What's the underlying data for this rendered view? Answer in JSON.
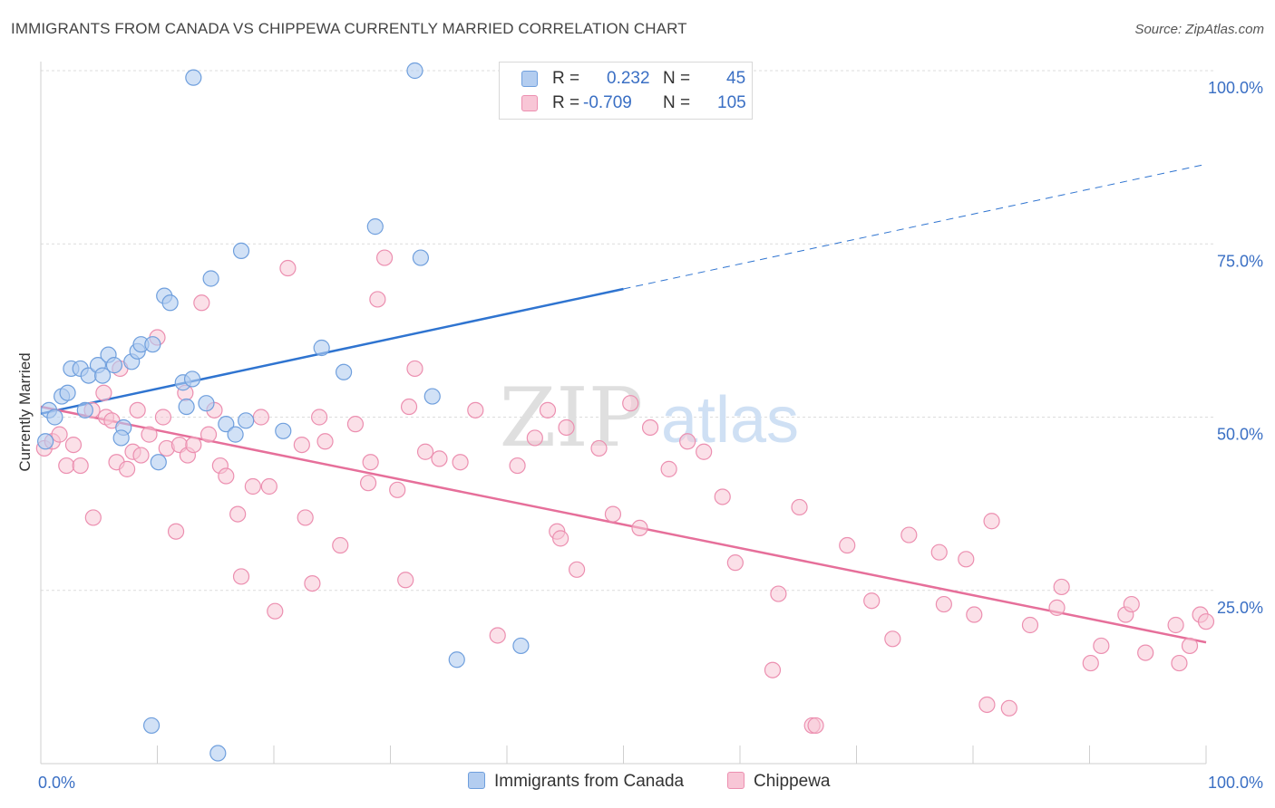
{
  "title": "IMMIGRANTS FROM CANADA VS CHIPPEWA CURRENTLY MARRIED CORRELATION CHART",
  "source": "Source: ZipAtlas.com",
  "watermark": {
    "zip": "ZIP",
    "atlas": "atlas"
  },
  "legend": {
    "r_label": "R =",
    "n_label": "N =",
    "rows": [
      {
        "r": "0.232",
        "n": "45",
        "color": "#a9c8f0"
      },
      {
        "r": "-0.709",
        "n": "105",
        "color": "#f5b8cc"
      }
    ]
  },
  "colors": {
    "blue_fill": "#b3cdf0",
    "blue_stroke": "#6f9fdd",
    "blue_line": "#2f74d0",
    "pink_fill": "#f8c6d6",
    "pink_stroke": "#ec8fb0",
    "pink_line": "#e66f9a",
    "grid": "#dcdcdc",
    "tick_text": "#3a6fc4"
  },
  "chart_data": {
    "type": "scatter",
    "xlabel": "",
    "ylabel": "Currently Married",
    "xlim": [
      0,
      100
    ],
    "ylim": [
      0,
      100
    ],
    "x_tick_labels": [
      {
        "x": 0,
        "label": "0.0%"
      },
      {
        "x": 100,
        "label": "100.0%"
      }
    ],
    "y_tick_labels": [
      {
        "y": 25,
        "label": "25.0%"
      },
      {
        "y": 50,
        "label": "50.0%"
      },
      {
        "y": 75,
        "label": "75.0%"
      },
      {
        "y": 100,
        "label": "100.0%"
      }
    ],
    "grid": true,
    "series": [
      {
        "name": "Immigrants from Canada",
        "color": "#a9c8f0",
        "r": 0.232,
        "n": 45,
        "trend": {
          "x0": 0,
          "y0": 50.5,
          "x1": 50,
          "y1": 68.5,
          "dashed_to_x": 100,
          "dashed_to_y": 86.5
        },
        "points": [
          [
            0.4,
            46.5
          ],
          [
            0.7,
            51
          ],
          [
            1.2,
            50
          ],
          [
            1.8,
            53
          ],
          [
            2.3,
            53.5
          ],
          [
            2.6,
            57
          ],
          [
            3.4,
            57
          ],
          [
            4.1,
            56
          ],
          [
            3.8,
            51
          ],
          [
            4.9,
            57.5
          ],
          [
            5.3,
            56
          ],
          [
            5.8,
            59
          ],
          [
            6.3,
            57.5
          ],
          [
            7.1,
            48.5
          ],
          [
            6.9,
            47
          ],
          [
            7.8,
            58
          ],
          [
            8.3,
            59.5
          ],
          [
            8.6,
            60.5
          ],
          [
            9.6,
            60.5
          ],
          [
            10.1,
            43.5
          ],
          [
            10.6,
            67.5
          ],
          [
            11.1,
            66.5
          ],
          [
            12.2,
            55
          ],
          [
            12.5,
            51.5
          ],
          [
            13.0,
            55.5
          ],
          [
            14.2,
            52
          ],
          [
            14.6,
            70
          ],
          [
            15.9,
            49
          ],
          [
            16.7,
            47.5
          ],
          [
            17.2,
            74
          ],
          [
            17.6,
            49.5
          ],
          [
            20.8,
            48
          ],
          [
            24.1,
            60
          ],
          [
            26.0,
            56.5
          ],
          [
            28.7,
            77.5
          ],
          [
            32.6,
            73
          ],
          [
            33.6,
            53
          ],
          [
            13.1,
            99
          ],
          [
            32.1,
            100
          ],
          [
            9.5,
            5.5
          ],
          [
            15.2,
            1.5
          ],
          [
            35.7,
            15
          ],
          [
            41.2,
            17
          ]
        ]
      },
      {
        "name": "Chippewa",
        "color": "#f5b8cc",
        "r": -0.709,
        "n": 105,
        "trend": {
          "x0": 0,
          "y0": 51.5,
          "x1": 100,
          "y1": 17.5
        },
        "points": [
          [
            0.3,
            45.5
          ],
          [
            1.0,
            46.5
          ],
          [
            1.6,
            47.5
          ],
          [
            2.2,
            43
          ],
          [
            2.8,
            46
          ],
          [
            3.4,
            43
          ],
          [
            4.4,
            51
          ],
          [
            4.5,
            35.5
          ],
          [
            5.4,
            53.5
          ],
          [
            5.6,
            50
          ],
          [
            6.1,
            49.5
          ],
          [
            6.5,
            43.5
          ],
          [
            6.8,
            57
          ],
          [
            7.4,
            42.5
          ],
          [
            7.9,
            45
          ],
          [
            8.3,
            51
          ],
          [
            8.6,
            44.5
          ],
          [
            9.3,
            47.5
          ],
          [
            10.0,
            61.5
          ],
          [
            10.5,
            50
          ],
          [
            10.8,
            45.5
          ],
          [
            11.6,
            33.5
          ],
          [
            11.9,
            46
          ],
          [
            12.4,
            53.5
          ],
          [
            12.6,
            44.5
          ],
          [
            13.1,
            46
          ],
          [
            13.8,
            66.5
          ],
          [
            14.4,
            47.5
          ],
          [
            14.9,
            51
          ],
          [
            15.4,
            43
          ],
          [
            15.9,
            41.5
          ],
          [
            16.9,
            36
          ],
          [
            17.2,
            27
          ],
          [
            18.2,
            40
          ],
          [
            18.9,
            50
          ],
          [
            19.6,
            40
          ],
          [
            20.1,
            22
          ],
          [
            21.2,
            71.5
          ],
          [
            22.4,
            46
          ],
          [
            22.7,
            35.5
          ],
          [
            23.3,
            26
          ],
          [
            23.9,
            50
          ],
          [
            24.4,
            46.5
          ],
          [
            25.7,
            31.5
          ],
          [
            27.0,
            49
          ],
          [
            28.1,
            40.5
          ],
          [
            28.3,
            43.5
          ],
          [
            28.9,
            67
          ],
          [
            29.5,
            73
          ],
          [
            30.6,
            39.5
          ],
          [
            31.3,
            26.5
          ],
          [
            31.6,
            51.5
          ],
          [
            32.1,
            57
          ],
          [
            33.0,
            45
          ],
          [
            34.2,
            44
          ],
          [
            36.0,
            43.5
          ],
          [
            37.3,
            51
          ],
          [
            39.2,
            18.5
          ],
          [
            40.9,
            43
          ],
          [
            42.4,
            47
          ],
          [
            43.5,
            51
          ],
          [
            44.3,
            33.5
          ],
          [
            44.6,
            32.5
          ],
          [
            45.1,
            48.5
          ],
          [
            46.0,
            28
          ],
          [
            47.9,
            45.5
          ],
          [
            49.1,
            36
          ],
          [
            50.6,
            52
          ],
          [
            51.4,
            34
          ],
          [
            52.3,
            48.5
          ],
          [
            53.9,
            42.5
          ],
          [
            55.5,
            46.5
          ],
          [
            56.9,
            45
          ],
          [
            58.5,
            38.5
          ],
          [
            59.6,
            29
          ],
          [
            62.8,
            13.5
          ],
          [
            63.3,
            24.5
          ],
          [
            65.1,
            37
          ],
          [
            66.2,
            5.5
          ],
          [
            66.5,
            5.5
          ],
          [
            69.2,
            31.5
          ],
          [
            71.3,
            23.5
          ],
          [
            73.1,
            18
          ],
          [
            74.5,
            33
          ],
          [
            77.1,
            30.5
          ],
          [
            77.5,
            23
          ],
          [
            79.4,
            29.5
          ],
          [
            80.1,
            21.5
          ],
          [
            81.2,
            8.5
          ],
          [
            81.6,
            35
          ],
          [
            83.1,
            8
          ],
          [
            84.9,
            20
          ],
          [
            87.2,
            22.5
          ],
          [
            87.6,
            25.5
          ],
          [
            90.1,
            14.5
          ],
          [
            91.0,
            17
          ],
          [
            93.1,
            21.5
          ],
          [
            93.6,
            23
          ],
          [
            94.8,
            16
          ],
          [
            97.4,
            20
          ],
          [
            97.7,
            14.5
          ],
          [
            98.6,
            17
          ],
          [
            99.5,
            21.5
          ],
          [
            100.0,
            20.5
          ]
        ]
      }
    ]
  }
}
